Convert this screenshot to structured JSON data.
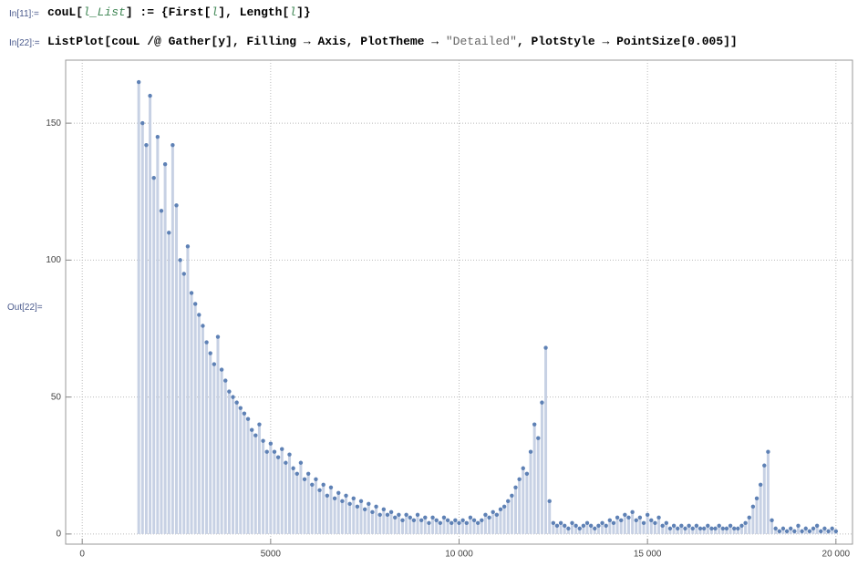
{
  "cells": [
    {
      "label": "In[11]:=",
      "code": [
        "couL[",
        "l_List",
        "] := {First[",
        "l",
        "], Length[",
        "l",
        "]}"
      ]
    },
    {
      "label": "In[22]:=",
      "code": [
        "ListPlot[couL /@ Gather[y], Filling → Axis, PlotTheme → ",
        "\"Detailed\"",
        ", PlotStyle → PointSize[0.005]]"
      ]
    },
    {
      "label": "Out[22]="
    }
  ],
  "chart_data": {
    "type": "scatter",
    "filling": "axis",
    "color": "#5e81b5",
    "fill_color": "#c7d1e4",
    "grid": true,
    "xlim": [
      -440,
      20440
    ],
    "ylim": [
      -3.7,
      173
    ],
    "xticks": [
      0,
      5000,
      {
        "value": 10000,
        "label": "10 000"
      },
      {
        "value": 15000,
        "label": "15 000"
      },
      {
        "value": 20000,
        "label": "20 000"
      }
    ],
    "yticks": [
      0,
      50,
      100,
      150
    ],
    "x": [
      1500,
      1600,
      1700,
      1800,
      1900,
      2000,
      2100,
      2200,
      2300,
      2400,
      2500,
      2600,
      2700,
      2800,
      2900,
      3000,
      3100,
      3200,
      3300,
      3400,
      3500,
      3600,
      3700,
      3800,
      3900,
      4000,
      4100,
      4200,
      4300,
      4400,
      4500,
      4600,
      4700,
      4800,
      4900,
      5000,
      5100,
      5200,
      5300,
      5400,
      5500,
      5600,
      5700,
      5800,
      5900,
      6000,
      6100,
      6200,
      6300,
      6400,
      6500,
      6600,
      6700,
      6800,
      6900,
      7000,
      7100,
      7200,
      7300,
      7400,
      7500,
      7600,
      7700,
      7800,
      7900,
      8000,
      8100,
      8200,
      8300,
      8400,
      8500,
      8600,
      8700,
      8800,
      8900,
      9000,
      9100,
      9200,
      9300,
      9400,
      9500,
      9600,
      9700,
      9800,
      9900,
      10000,
      10100,
      10200,
      10300,
      10400,
      10500,
      10600,
      10700,
      10800,
      10900,
      11000,
      11100,
      11200,
      11300,
      11400,
      11500,
      11600,
      11700,
      11800,
      11900,
      12000,
      12100,
      12200,
      12300,
      12400,
      12500,
      12600,
      12700,
      12800,
      12900,
      13000,
      13100,
      13200,
      13300,
      13400,
      13500,
      13600,
      13700,
      13800,
      13900,
      14000,
      14100,
      14200,
      14300,
      14400,
      14500,
      14600,
      14700,
      14800,
      14900,
      15000,
      15100,
      15200,
      15300,
      15400,
      15500,
      15600,
      15700,
      15800,
      15900,
      16000,
      16100,
      16200,
      16300,
      16400,
      16500,
      16600,
      16700,
      16800,
      16900,
      17000,
      17100,
      17200,
      17300,
      17400,
      17500,
      17600,
      17700,
      17800,
      17900,
      18000,
      18100,
      18200,
      18300,
      18400,
      18500,
      18600,
      18700,
      18800,
      18900,
      19000,
      19100,
      19200,
      19300,
      19400,
      19500,
      19600,
      19700,
      19800,
      19900,
      20000
    ],
    "values": [
      165,
      150,
      142,
      160,
      130,
      145,
      118,
      135,
      110,
      142,
      120,
      100,
      95,
      105,
      88,
      84,
      80,
      76,
      70,
      66,
      62,
      72,
      60,
      56,
      52,
      50,
      48,
      46,
      44,
      42,
      38,
      36,
      40,
      34,
      30,
      33,
      30,
      28,
      31,
      26,
      29,
      24,
      22,
      26,
      20,
      22,
      18,
      20,
      16,
      18,
      14,
      17,
      13,
      15,
      12,
      14,
      11,
      13,
      10,
      12,
      9,
      11,
      8,
      10,
      7,
      9,
      7,
      8,
      6,
      7,
      5,
      7,
      6,
      5,
      7,
      5,
      6,
      4,
      6,
      5,
      4,
      6,
      5,
      4,
      5,
      4,
      5,
      4,
      6,
      5,
      4,
      5,
      7,
      6,
      8,
      7,
      9,
      10,
      12,
      14,
      17,
      20,
      24,
      22,
      30,
      40,
      35,
      48,
      68,
      12,
      4,
      3,
      4,
      3,
      2,
      4,
      3,
      2,
      3,
      4,
      3,
      2,
      3,
      4,
      3,
      5,
      4,
      6,
      5,
      7,
      6,
      8,
      5,
      6,
      4,
      7,
      5,
      4,
      6,
      3,
      4,
      2,
      3,
      2,
      3,
      2,
      3,
      2,
      3,
      2,
      2,
      3,
      2,
      2,
      3,
      2,
      2,
      3,
      2,
      2,
      3,
      4,
      6,
      10,
      13,
      18,
      25,
      30,
      5,
      2,
      1,
      2,
      1,
      2,
      1,
      3,
      1,
      2,
      1,
      2,
      3,
      1,
      2,
      1,
      2,
      1
    ]
  }
}
